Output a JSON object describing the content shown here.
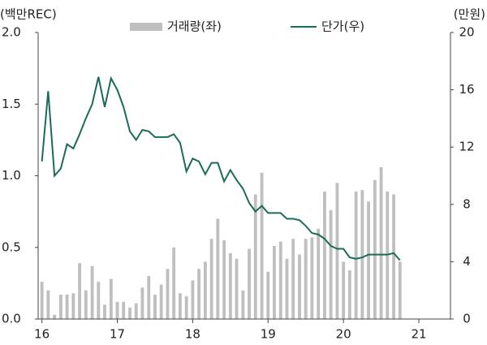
{
  "chart_data": {
    "type": "bar_line",
    "y_label": "(백만REC)",
    "y2_label": "(만원)",
    "x": [
      16,
      16.083,
      16.167,
      16.25,
      16.333,
      16.417,
      16.5,
      16.583,
      16.667,
      16.75,
      16.833,
      16.917,
      17,
      17.083,
      17.167,
      17.25,
      17.333,
      17.417,
      17.5,
      17.583,
      17.667,
      17.75,
      17.833,
      17.917,
      18,
      18.083,
      18.167,
      18.25,
      18.333,
      18.417,
      18.5,
      18.583,
      18.667,
      18.75,
      18.833,
      18.917,
      19,
      19.083,
      19.167,
      19.25,
      19.333,
      19.417,
      19.5,
      19.583,
      19.667,
      19.75,
      19.833,
      19.917,
      20,
      20.083,
      20.167,
      20.25,
      20.333,
      20.417,
      20.5,
      20.583,
      20.667,
      20.75
    ],
    "series": [
      {
        "name": "거래량(좌)",
        "kind": "bar",
        "color": "#bfbfbf",
        "values": [
          0.26,
          0.2,
          0.03,
          0.17,
          0.17,
          0.18,
          0.39,
          0.2,
          0.37,
          0.26,
          0.1,
          0.28,
          0.12,
          0.12,
          0.08,
          0.11,
          0.22,
          0.3,
          0.17,
          0.24,
          0.35,
          0.5,
          0.18,
          0.16,
          0.27,
          0.35,
          0.4,
          0.56,
          0.7,
          0.55,
          0.46,
          0.42,
          0.2,
          0.49,
          0.87,
          1.02,
          0.33,
          0.51,
          0.54,
          0.42,
          0.56,
          0.45,
          0.56,
          0.57,
          0.63,
          0.89,
          0.76,
          0.95,
          0.4,
          0.34,
          0.89,
          0.9,
          0.82,
          0.97,
          1.06,
          0.89,
          0.87,
          0.4
        ]
      },
      {
        "name": "단가(우)",
        "kind": "line",
        "axis": "y2",
        "color": "#1a6b5a",
        "values": [
          11.0,
          15.9,
          10.0,
          10.5,
          12.2,
          11.9,
          12.9,
          14.0,
          15.0,
          16.9,
          14.8,
          16.8,
          16.0,
          14.8,
          13.1,
          12.5,
          13.2,
          13.1,
          12.7,
          12.7,
          12.7,
          12.9,
          12.3,
          10.3,
          11.2,
          11.0,
          10.1,
          10.9,
          10.9,
          9.6,
          10.4,
          9.7,
          9.1,
          8.1,
          7.5,
          7.9,
          7.4,
          7.4,
          7.4,
          7.0,
          7.0,
          6.9,
          6.5,
          6.0,
          5.9,
          5.6,
          5.1,
          4.9,
          4.9,
          4.3,
          4.2,
          4.3,
          4.5,
          4.5,
          4.5,
          4.5,
          4.6,
          4.1
        ]
      }
    ],
    "xlim": [
      15.95,
      21.42
    ],
    "xticks": [
      16,
      17,
      18,
      19,
      20,
      21
    ],
    "ylim": [
      0,
      2
    ],
    "yticks": [
      {
        "value": 0,
        "label": "0.0"
      },
      {
        "value": 0.5,
        "label": "0.5"
      },
      {
        "value": 1,
        "label": "1.0"
      },
      {
        "value": 1.5,
        "label": "1.5"
      },
      {
        "value": 2,
        "label": "2.0"
      }
    ],
    "y2lim": [
      0,
      20
    ],
    "y2ticks": [
      0,
      4,
      8,
      12,
      16,
      20
    ]
  }
}
